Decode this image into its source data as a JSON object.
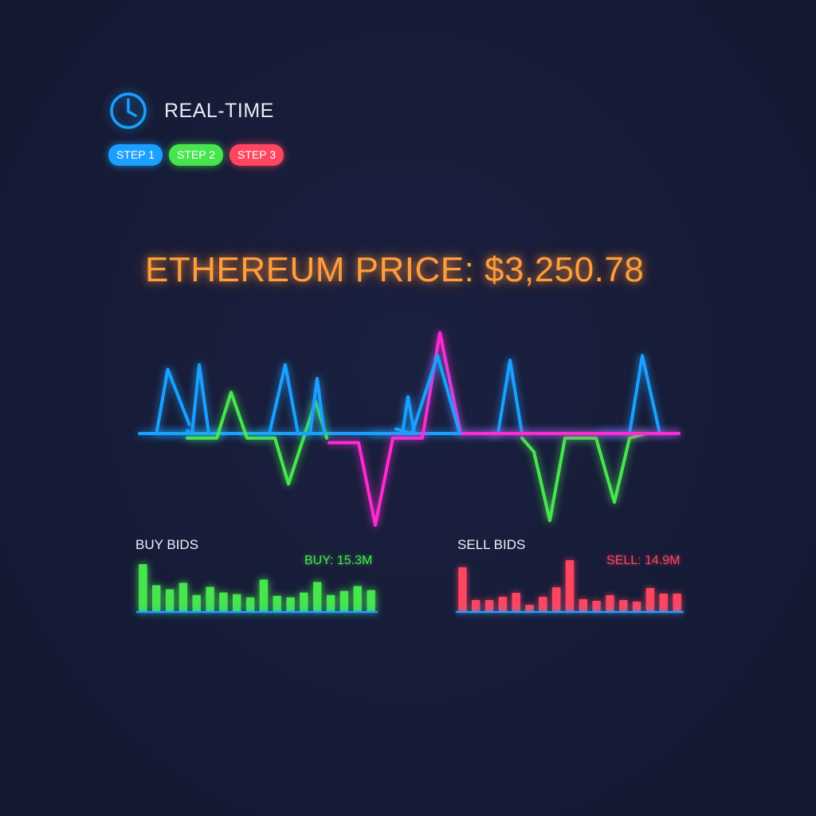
{
  "header": {
    "icon": "clock-icon",
    "label": "REAL-TIME"
  },
  "steps": [
    {
      "label": "STEP 1",
      "color": "#1aa0ff"
    },
    {
      "label": "STEP 2",
      "color": "#47e64f"
    },
    {
      "label": "STEP 3",
      "color": "#ff4560"
    }
  ],
  "price": {
    "text": "ETHEREUM PRICE: $3,250.78",
    "color": "#ff9e3d"
  },
  "background_color": "#161b36",
  "chart_data": [
    {
      "type": "line",
      "axes_visible": false,
      "grid": false,
      "series": [
        {
          "color": "#1aa0ff",
          "points": [
            [
              0,
              0.3
            ],
            [
              5,
              7
            ],
            [
              15,
              1
            ]
          ]
        },
        {
          "color": "#1aa0ff",
          "points": [
            [
              0,
              0
            ],
            [
              28,
              0
            ],
            [
              31,
              1
            ]
          ]
        },
        {
          "color": "#1aa0ff",
          "points": [
            [
              88,
              0.3
            ],
            [
              90,
              0
            ],
            [
              93,
              7.5
            ],
            [
              97,
              0
            ]
          ]
        },
        {
          "color": "#1aa0ff",
          "points": [
            [
              82,
              0
            ],
            [
              86,
              0
            ],
            [
              91,
              7.5
            ],
            [
              95,
              0
            ]
          ]
        },
        {
          "color": "#1aa0ff",
          "points": [
            [
              97,
              0
            ],
            [
              100,
              0
            ],
            [
              103,
              6
            ],
            [
              106,
              0
            ]
          ]
        },
        {
          "color": "#1aa0ff",
          "points": [
            [
              120,
              0.5
            ],
            [
              125,
              0
            ],
            [
              133,
              8.5
            ],
            [
              140,
              0
            ]
          ]
        },
        {
          "color": "#1aa0ff",
          "points": [
            [
              195,
              0
            ],
            [
              280,
              0
            ]
          ]
        },
        {
          "color": "#1aa0ff",
          "points": [
            [
              465,
              0
            ],
            [
              505,
              0
            ],
            [
              512,
              4
            ],
            [
              520,
              0
            ]
          ]
        },
        {
          "color": "#1aa0ff",
          "points": [
            [
              615,
              0
            ],
            [
              625,
              0
            ],
            [
              640,
              8
            ],
            [
              655,
              0
            ]
          ]
        },
        {
          "color": "#1aa0ff",
          "points": [
            [
              755,
              0
            ],
            [
              790,
              0
            ],
            [
              806,
              8.5
            ],
            [
              828,
              0
            ]
          ]
        },
        {
          "color": "#1aa0ff",
          "points": [
            [
              175,
              0
            ],
            [
              850,
              0
            ]
          ]
        },
        {
          "color": "#47e64f",
          "points": [
            [
              235,
              -0.5
            ],
            [
              272,
              -0.5
            ],
            [
              290,
              4.5
            ],
            [
              310,
              -0.5
            ],
            [
              345,
              -0.5
            ],
            [
              362,
              -5.5
            ],
            [
              396,
              3.5
            ],
            [
              410,
              -0.5
            ]
          ]
        },
        {
          "color": "#47e64f",
          "points": [
            [
              655,
              -0.5
            ],
            [
              670,
              -2
            ],
            [
              690,
              -9.5
            ],
            [
              709,
              -0.5
            ],
            [
              748,
              -0.5
            ],
            [
              771,
              -7.5
            ],
            [
              790,
              -0.5
            ],
            [
              810,
              0
            ]
          ]
        },
        {
          "color": "#ff2ad2",
          "points": [
            [
              413,
              -1
            ],
            [
              450,
              -1
            ],
            [
              471,
              -10
            ],
            [
              493,
              -0.5
            ],
            [
              530,
              -0.5
            ],
            [
              552,
              11
            ],
            [
              578,
              0
            ],
            [
              852,
              0
            ]
          ]
        }
      ]
    },
    {
      "type": "bar",
      "title": "BUY BIDS",
      "summary": "BUY: 15.3M",
      "color": "#47e64f",
      "values": [
        58,
        32,
        27,
        35,
        20,
        30,
        23,
        21,
        17,
        39,
        19,
        17,
        23,
        36,
        20,
        25,
        31,
        26
      ]
    },
    {
      "type": "bar",
      "title": "SELL BIDS",
      "summary": "SELL: 14.9M",
      "color": "#ff4560",
      "values": [
        55,
        14,
        14,
        18,
        23,
        8,
        18,
        30,
        64,
        15,
        13,
        20,
        14,
        12,
        29,
        22,
        22
      ]
    }
  ]
}
